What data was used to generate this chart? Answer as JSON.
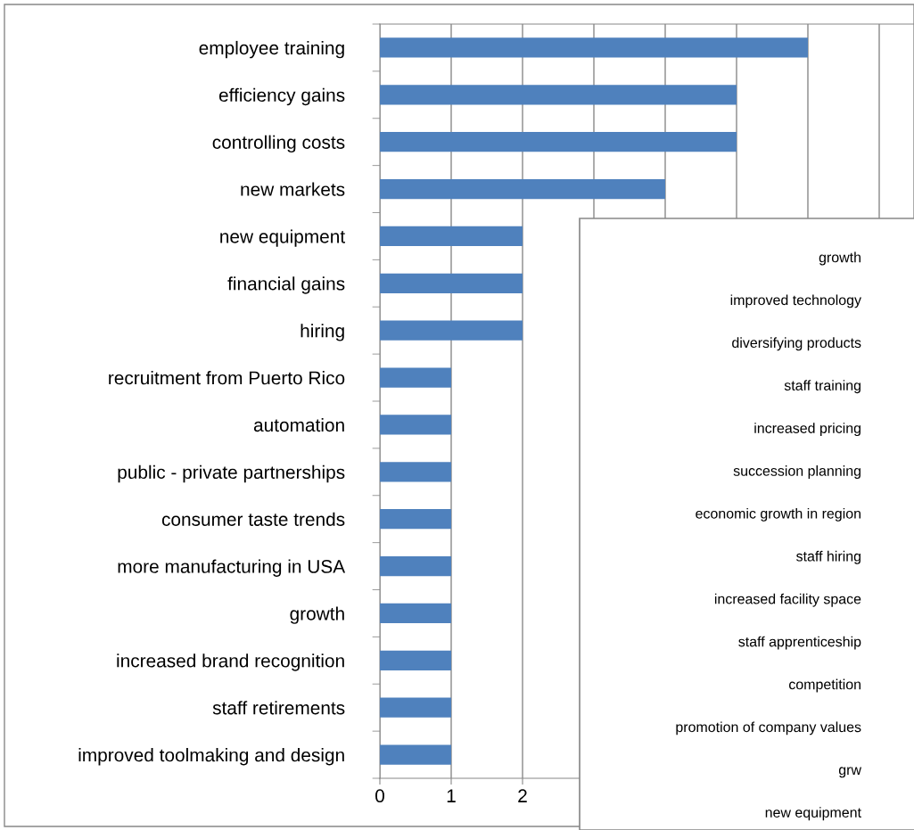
{
  "chart_data": [
    {
      "type": "bar",
      "orientation": "horizontal",
      "categories": [
        "employee training",
        "efficiency gains",
        "controlling costs",
        "new markets",
        "new equipment",
        "financial gains",
        "hiring",
        "recruitment from Puerto Rico",
        "automation",
        "public - private partnerships",
        "consumer taste trends",
        "more manufacturing in USA",
        "growth",
        "increased brand recognition",
        "staff retirements",
        "improved toolmaking and design"
      ],
      "values": [
        6,
        5,
        5,
        4,
        2,
        2,
        2,
        1,
        1,
        1,
        1,
        1,
        1,
        1,
        1,
        1
      ],
      "color": "#4f81bd",
      "xlim": [
        0,
        7.5
      ],
      "xticks": [
        0,
        1,
        2,
        {
          "value": 3,
          "label": null
        },
        {
          "value": 4,
          "label": null
        },
        {
          "value": 5,
          "label": null
        },
        {
          "value": 6,
          "label": null
        },
        {
          "value": 7,
          "label": null
        }
      ],
      "grid": "x"
    },
    {
      "type": "other",
      "categories": [
        "growth",
        "improved technology",
        "diversifying products",
        "staff training",
        "increased pricing",
        "succession planning",
        "economic growth in region",
        "staff hiring",
        "increased facility space",
        "staff apprenticeship",
        "competition",
        "promotion of company values",
        "grw",
        "new equipment"
      ]
    }
  ]
}
